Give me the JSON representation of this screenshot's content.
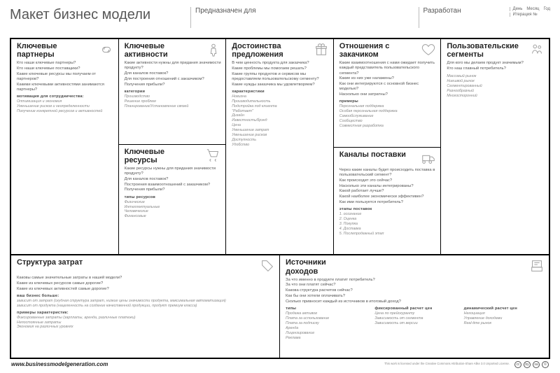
{
  "header": {
    "title": "Макет бизнес модели",
    "designed_for_label": "Предназначен для",
    "designed_by_label": "Разработан",
    "date_labels": {
      "day": "День",
      "month": "Месяц",
      "year": "Год"
    },
    "iteration_label": "Итерация №"
  },
  "blocks": {
    "partners": {
      "title": "Ключевые партнеры",
      "icon": "link-icon",
      "questions": [
        "Кто наши ключевые партнеры?",
        "Кто наши ключевые поставщики?",
        "Какие ключевые ресурсы мы получаем от партнеров?",
        "Какими ключевыми активностями занимаются партнеры?"
      ],
      "sub1_label": "мотивация для сотрудничества:",
      "sub1_items": [
        "Оптимизация и экономия",
        "Уменьшение рисков и неопределенности",
        "Получение конкретной ресурсов и активностей"
      ]
    },
    "activities": {
      "title": "Ключевые активности",
      "icon": "person-icon",
      "questions": [
        "Какие активности нужны для придания значимости продукту?",
        "Для каналов поставок?",
        "Для построения отношений с заказчиком?",
        "Получения прибыли?"
      ],
      "sub1_label": "категории",
      "sub1_items": [
        "Производство",
        "Решение проблем",
        "Планирование/Установление связей"
      ]
    },
    "resources": {
      "title": "Ключевые ресурсы",
      "icon": "cart-icon",
      "questions": [
        "Какие ресурсы нужны для придания значимости продукту?",
        "Для каналов поставок?",
        "Построения взаимоотношений с заказчиком?",
        "Получения прибыли?"
      ],
      "sub1_label": "типы ресурсов",
      "sub1_items": [
        "Физические",
        "Интеллектуальные",
        "Человеческие",
        "Финансовые"
      ]
    },
    "value": {
      "title": "Достоинства предложения",
      "icon": "gift-icon",
      "questions": [
        "В чем ценность продукта для заказчика?",
        "Какие проблемы мы помогаем решать?",
        "Какие группы продуктов и сервисов мы предоставляем пользовательскому сегменту?",
        "Какие нужды заказчика мы удовлетворяем?"
      ],
      "sub1_label": "характеристики",
      "sub1_items": [
        "Новизна",
        "Производительность",
        "Подстройка под клиента",
        "\"Работает\"",
        "Дизайн",
        "Известность/брэнд",
        "Цена",
        "Уменьшение затрат",
        "Уменьшение рисков",
        "Доступность",
        "Удобство"
      ]
    },
    "relationships": {
      "title": "Отношения с закачиком",
      "icon": "heart-icon",
      "questions": [
        "Какие взаимоотношения с нами ожидает получить каждый представитель пользовательского сегмента?",
        "Какие из них уже налажены?",
        "Как они интегрируются с основной бизнес моделью?",
        "Насколько они затратны?"
      ],
      "sub1_label": "примеры",
      "sub1_items": [
        "Персональная поддержка",
        "Особая персональная поддержка",
        "Самообслуживание",
        "Сообщество",
        "Совместная разработка"
      ]
    },
    "channels": {
      "title": "Каналы поставки",
      "icon": "truck-icon",
      "questions": [
        "Через какие каналы будет происходить поставка в пользовательский сегмент?",
        "Как происходит это сейчас?",
        "Насколько эти каналы интегрированы?",
        "Какой работает лучше?",
        "Какой наиболее экономически эффективен?",
        "Как ими пользуется потребитель?"
      ],
      "sub1_label": "этапы поставок",
      "sub1_items": [
        "1. осознание",
        "2. Оценка",
        "3. Покупка",
        "4. Доставка",
        "5. Послепродажный этап"
      ]
    },
    "segments": {
      "title": "Пользовательские сегменты",
      "icon": "people-icon",
      "questions": [
        "Для кого мы делаем продукт значимым?",
        "Кто наш главный потребитель?"
      ],
      "sub1_label": "",
      "sub1_items": [
        "Массовый рынок",
        "Ниешвой рынок",
        "Сегментированный",
        "Разнообразный",
        "Многосторонний"
      ]
    },
    "costs": {
      "title": "Структура затрат",
      "icon": "tags-icon",
      "questions": [
        "Каковы самые значительные затраты в нашей модели?",
        "Какие из ключевых ресурсов самые дорогие?",
        "Какие из ключевых активностей самые дорогие?"
      ],
      "sub1_label": "ваш бизнес больше:",
      "sub1_items": [
        "зависит от затрат (скудная структура затрат, низкие цены значимости продукта, максимальная автоматизация)",
        "зависит от продукта (нацеленность на создание качественной продукции, продукт премиум класса)"
      ],
      "sub2_label": "примеры характеристик:",
      "sub2_items": [
        "Фиксированные затраты (зарплаты, аренда, различные платежи)",
        "Непостоянные затраты",
        "Экономия на различных уровнях"
      ]
    },
    "revenue": {
      "title": "Источники доходов",
      "icon": "register-icon",
      "questions": [
        "За что именно в продукте платит потребитель?",
        "За что они платят сейчас?",
        "Какова структура расчетов сейчас?",
        "Как бы они хотели оплачивать?",
        "Сколько привносит каждый из источников в итоговый доход?"
      ],
      "cols": [
        {
          "label": "типы",
          "items": [
            "Продажа активов",
            "Плата за использование",
            "Плата за подписку",
            "Аренда",
            "Лицензирование",
            "Реклама"
          ]
        },
        {
          "label": "фиксированный расчет цен",
          "items": [
            "Цена по прейскуранту",
            "Зависимость от сегмента",
            "Зависимость от версии"
          ]
        },
        {
          "label": "динамический расчет цен",
          "items": [
            "Негоциация",
            "Управление доходами",
            "Real-time рынок"
          ]
        }
      ]
    }
  },
  "footer": {
    "url": "www.businessmodelgeneration.com",
    "license_text": "This work is licensed under the Creative Commons Attribution-Share Alike 3.0 Unported License.",
    "cc": [
      "cc",
      "by",
      "sa",
      "©"
    ]
  },
  "style": {
    "border_color": "#000000",
    "bg": "#ffffff",
    "title_fontsize": 11,
    "body_fontsize": 5.8,
    "italic_fontsize": 5.3,
    "header_fontsize": 20
  }
}
